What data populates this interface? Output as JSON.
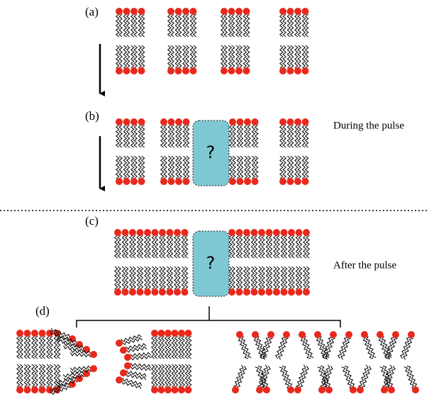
{
  "labels": {
    "a": "(a)",
    "b": "(b)",
    "c": "(c)",
    "d": "(d)"
  },
  "notes": {
    "during": "During the pulse",
    "after": "After the pulse"
  },
  "pores": {
    "b": "?",
    "c": "?"
  }
}
